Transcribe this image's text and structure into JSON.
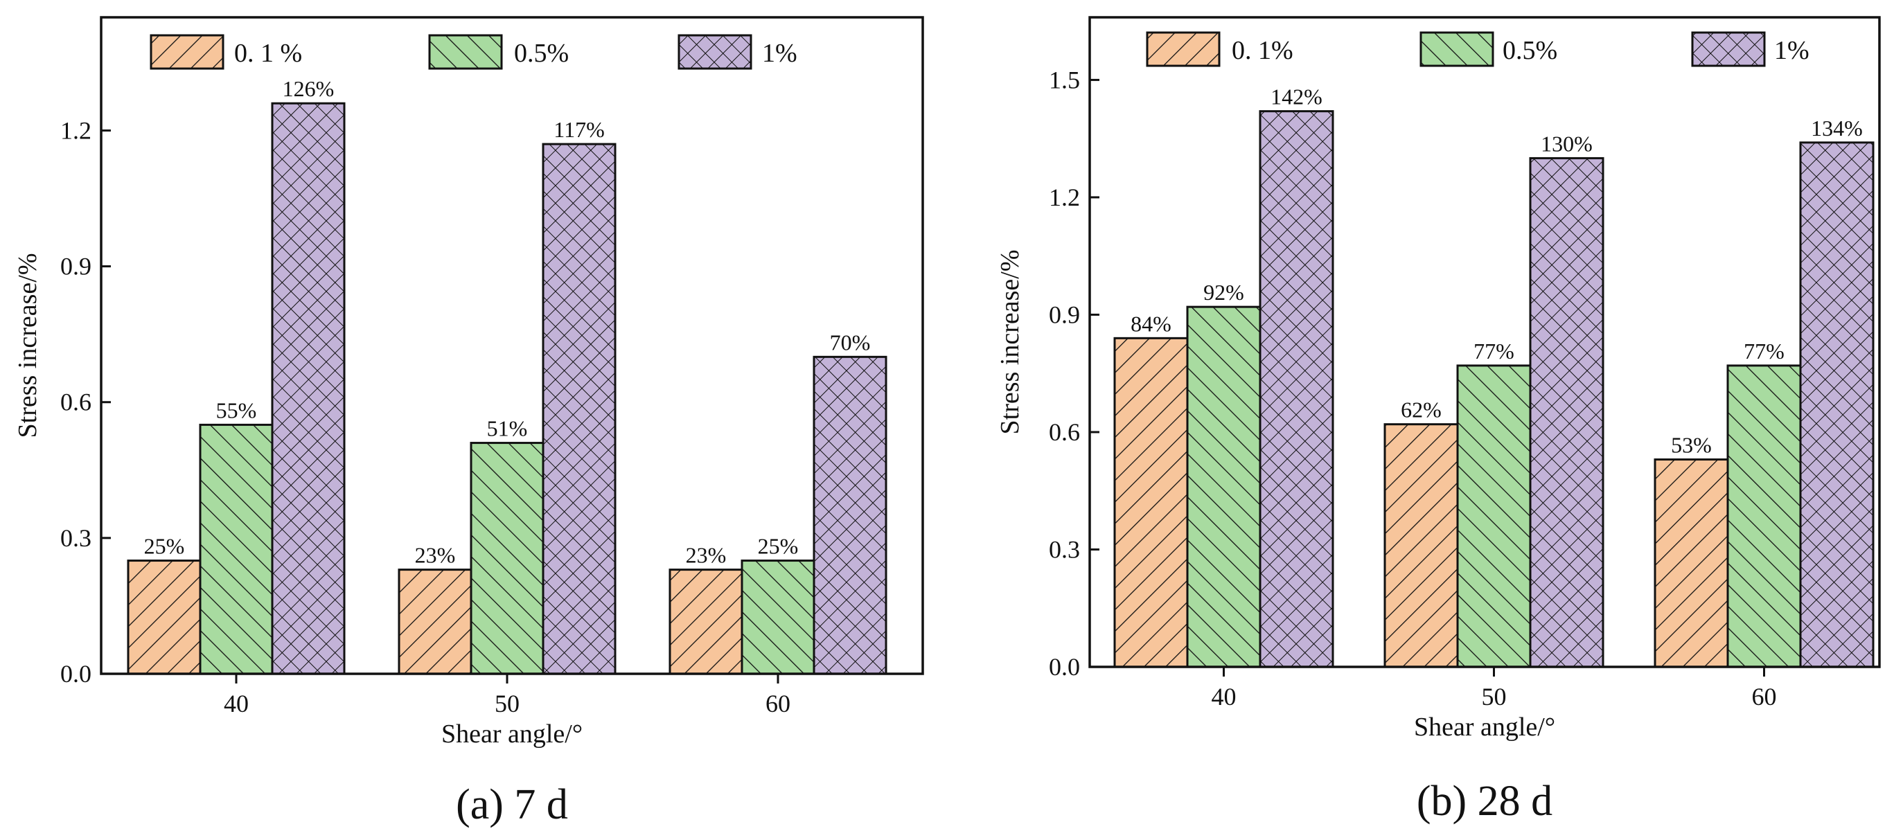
{
  "colors": {
    "series": [
      "#f7c59b",
      "#a8dba0",
      "#c3b3d8"
    ],
    "stroke": "#111111"
  },
  "chart_data": [
    {
      "type": "bar",
      "panel_id": "a",
      "caption": {
        "letter": "(a)",
        "text": "7 d"
      },
      "xlabel": "Shear angle/°",
      "ylabel": "Stress increase/%",
      "categories": [
        "40",
        "50",
        "60"
      ],
      "ylim": [
        0,
        1.45
      ],
      "yticks": [
        "0.0",
        "0.3",
        "0.6",
        "0.9",
        "1.2"
      ],
      "ytick_values": [
        0,
        0.3,
        0.6,
        0.9,
        1.2
      ],
      "legend_position": "top",
      "series": [
        {
          "name": "0. 1 %",
          "pattern": "forward-hatch",
          "values": [
            0.25,
            0.23,
            0.23
          ],
          "labels": [
            "25%",
            "23%",
            "23%"
          ]
        },
        {
          "name": "0.5%",
          "pattern": "backward-hatch",
          "values": [
            0.55,
            0.51,
            0.25
          ],
          "labels": [
            "55%",
            "51%",
            "25%"
          ]
        },
        {
          "name": "1%",
          "pattern": "cross-hatch",
          "values": [
            1.26,
            1.17,
            0.7
          ],
          "labels": [
            "126%",
            "117%",
            "70%"
          ]
        }
      ]
    },
    {
      "type": "bar",
      "panel_id": "b",
      "caption": {
        "letter": "(b)",
        "text": "28 d"
      },
      "xlabel": "Shear angle/°",
      "ylabel": "Stress increase/%",
      "categories": [
        "40",
        "50",
        "60"
      ],
      "ylim": [
        0,
        1.66
      ],
      "yticks": [
        "0.0",
        "0.3",
        "0.6",
        "0.9",
        "1.2",
        "1.5"
      ],
      "ytick_values": [
        0,
        0.3,
        0.6,
        0.9,
        1.2,
        1.5
      ],
      "legend_position": "top",
      "series": [
        {
          "name": "0. 1%",
          "pattern": "forward-hatch",
          "values": [
            0.84,
            0.62,
            0.53
          ],
          "labels": [
            "84%",
            "62%",
            "53%"
          ]
        },
        {
          "name": "0.5%",
          "pattern": "backward-hatch",
          "values": [
            0.92,
            0.77,
            0.77
          ],
          "labels": [
            "92%",
            "77%",
            "77%"
          ]
        },
        {
          "name": "1%",
          "pattern": "cross-hatch",
          "values": [
            1.42,
            1.3,
            1.34
          ],
          "labels": [
            "142%",
            "130%",
            "134%"
          ]
        }
      ]
    }
  ]
}
